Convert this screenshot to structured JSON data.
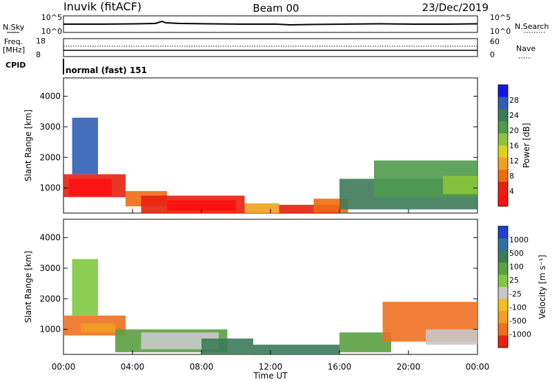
{
  "header": {
    "station": "Inuvik (fitACF)",
    "beam": "Beam 00",
    "date": "23/Dec/2019"
  },
  "strips": {
    "nsky_label": "N.Sky",
    "nsky_ticks": [
      "10^5",
      "10^0"
    ],
    "nsearch_label": "N.Search",
    "nsearch_ticks": [
      "10^5",
      "10^0"
    ],
    "freq_label_line1": "Freq.",
    "freq_label_line2": "[MHz]",
    "freq_ticks": [
      "18",
      "8"
    ],
    "nave_label": "Nave",
    "nave_ticks": [
      "60",
      "0"
    ],
    "cpid_label": "CPID",
    "cpid_text": "normal (fast) 151"
  },
  "x_ticks": [
    "00:00",
    "04:00",
    "08:00",
    "12:00",
    "16:00",
    "20:00",
    "00:00"
  ],
  "x_label": "Time UT",
  "chart_data": [
    {
      "type": "heatmap",
      "name": "power-panel",
      "ylabel": "Slant Range [km]",
      "ylim": [
        180,
        4600
      ],
      "y_ticks": [
        1000,
        2000,
        3000,
        4000
      ],
      "xlim_hours": [
        0,
        24
      ],
      "colorbar": {
        "label": "Power [dB]",
        "tick_labels": [
          "4",
          "8",
          "12",
          "16",
          "20",
          "24",
          "28"
        ],
        "colors": [
          "#1515e8",
          "#2f5fb5",
          "#3d7a5a",
          "#4f9a4f",
          "#8bc43a",
          "#e0d020",
          "#f0a020",
          "#f06a10",
          "#e82010",
          "#ff1010"
        ]
      },
      "regions": [
        {
          "t": [
            0.0,
            3.6
          ],
          "r": [
            700,
            1450
          ],
          "color": "#e82010"
        },
        {
          "t": [
            0.3,
            2.8
          ],
          "r": [
            750,
            1300
          ],
          "color": "#ff1010"
        },
        {
          "t": [
            3.6,
            6.0
          ],
          "r": [
            400,
            900
          ],
          "color": "#f06a10"
        },
        {
          "t": [
            4.5,
            10.5
          ],
          "r": [
            180,
            750
          ],
          "color": "#e82010"
        },
        {
          "t": [
            6.0,
            10.0
          ],
          "r": [
            250,
            600
          ],
          "color": "#ff1010"
        },
        {
          "t": [
            10.5,
            12.5
          ],
          "r": [
            180,
            500
          ],
          "color": "#f0a020"
        },
        {
          "t": [
            12.5,
            16.0
          ],
          "r": [
            180,
            450
          ],
          "color": "#e82010"
        },
        {
          "t": [
            14.5,
            16.5
          ],
          "r": [
            200,
            650
          ],
          "color": "#f06a10"
        },
        {
          "t": [
            16.0,
            24.0
          ],
          "r": [
            300,
            1300
          ],
          "color": "#3d7a5a"
        },
        {
          "t": [
            18.0,
            24.0
          ],
          "r": [
            700,
            1900
          ],
          "color": "#4f9a4f"
        },
        {
          "t": [
            22.0,
            24.0
          ],
          "r": [
            800,
            1400
          ],
          "color": "#8bc43a"
        },
        {
          "t": [
            0.5,
            2.0
          ],
          "r": [
            1450,
            3300
          ],
          "color": "#2f5fb5"
        }
      ]
    },
    {
      "type": "heatmap",
      "name": "velocity-panel",
      "ylabel": "Slant Range [km]",
      "ylim": [
        180,
        4600
      ],
      "y_ticks": [
        1000,
        2000,
        3000,
        4000
      ],
      "xlim_hours": [
        0,
        24
      ],
      "colorbar": {
        "label": "Velocity [m s⁻¹]",
        "tick_labels": [
          "1000",
          "500",
          "100",
          "25",
          "-25",
          "-100",
          "-500",
          "-1000"
        ],
        "colors": [
          "#2040d0",
          "#3070a0",
          "#3d7a5a",
          "#5aa040",
          "#80c840",
          "#c8c8c8",
          "#f0c020",
          "#f0a020",
          "#f07020",
          "#e82010"
        ]
      },
      "regions": [
        {
          "t": [
            0.0,
            3.6
          ],
          "r": [
            800,
            1450
          ],
          "color": "#f07020"
        },
        {
          "t": [
            1.0,
            3.0
          ],
          "r": [
            900,
            1200
          ],
          "color": "#f0a020"
        },
        {
          "t": [
            3.0,
            9.5
          ],
          "r": [
            250,
            1000
          ],
          "color": "#5aa040"
        },
        {
          "t": [
            4.5,
            9.0
          ],
          "r": [
            350,
            900
          ],
          "color": "#c8c8c8"
        },
        {
          "t": [
            8.0,
            11.0
          ],
          "r": [
            200,
            700
          ],
          "color": "#3d7a5a"
        },
        {
          "t": [
            11.0,
            16.0
          ],
          "r": [
            180,
            500
          ],
          "color": "#3d7a5a"
        },
        {
          "t": [
            16.0,
            19.0
          ],
          "r": [
            250,
            900
          ],
          "color": "#5aa040"
        },
        {
          "t": [
            18.5,
            24.0
          ],
          "r": [
            600,
            1900
          ],
          "color": "#f07020"
        },
        {
          "t": [
            21.0,
            24.0
          ],
          "r": [
            500,
            1000
          ],
          "color": "#c8c8c8"
        },
        {
          "t": [
            0.5,
            2.0
          ],
          "r": [
            1450,
            3300
          ],
          "color": "#80c840"
        }
      ]
    }
  ]
}
